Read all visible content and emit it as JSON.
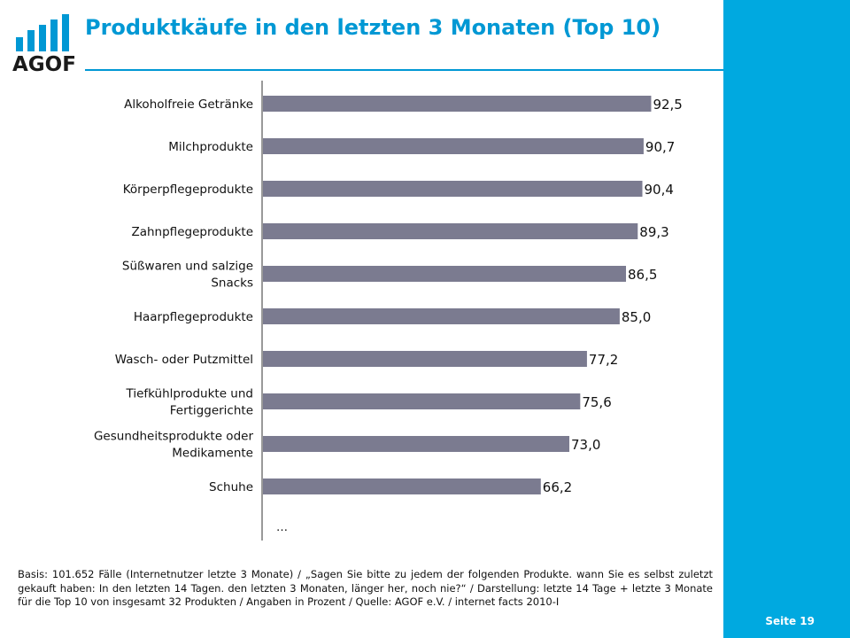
{
  "header": {
    "logo_text": "AGOF",
    "title": "Produktkäufe in den letzten 3 Monaten (Top 10)"
  },
  "chart_data": {
    "type": "bar",
    "orientation": "horizontal",
    "categories": [
      "Alkoholfreie Getränke",
      "Milchprodukte",
      "Körperpflegeprodukte",
      "Zahnpflegeprodukte",
      "Süßwaren und salzige Snacks",
      "Haarpflegeprodukte",
      "Wasch- oder Putzmittel",
      "Tiefkühlprodukte und Fertiggerichte",
      "Gesundheitsprodukte oder Medikamente",
      "Schuhe"
    ],
    "category_lines": [
      [
        "Alkoholfreie Getränke"
      ],
      [
        "Milchprodukte"
      ],
      [
        "Körperpflegeprodukte"
      ],
      [
        "Zahnpflegeprodukte"
      ],
      [
        "Süßwaren und salzige",
        "Snacks"
      ],
      [
        "Haarpflegeprodukte"
      ],
      [
        "Wasch- oder Putzmittel"
      ],
      [
        "Tiefkühlprodukte und",
        "Fertiggerichte"
      ],
      [
        "Gesundheitsprodukte oder",
        "Medikamente"
      ],
      [
        "Schuhe"
      ]
    ],
    "values": [
      92.5,
      90.7,
      90.4,
      89.3,
      86.5,
      85.0,
      77.2,
      75.6,
      73.0,
      66.2
    ],
    "value_labels": [
      "92,5",
      "90,7",
      "90,4",
      "89,3",
      "86,5",
      "85,0",
      "77,2",
      "75,6",
      "73,0",
      "66,2"
    ],
    "xlim": [
      0,
      100
    ],
    "more_marker": "…",
    "grid": false,
    "bar_color": "#7b7b90"
  },
  "footer": {
    "footnote": "Basis: 101.652 Fälle (Internetnutzer letzte 3 Monate) / „Sagen Sie bitte zu jedem der folgenden Produkte. wann Sie es selbst zuletzt gekauft haben: In den letzten 14 Tagen. den letzten 3 Monaten, länger her, noch nie?“ / Darstellung: letzte 14 Tage + letzte 3 Monate für die Top 10 von insgesamt 32 Produkten / Angaben in Prozent / Quelle: AGOF e.V. / internet facts 2010-I",
    "page_number": "Seite 19"
  },
  "colors": {
    "title": "#0098d4",
    "side_bar": "#00a9e0",
    "logo_bars": "#0098d4"
  }
}
